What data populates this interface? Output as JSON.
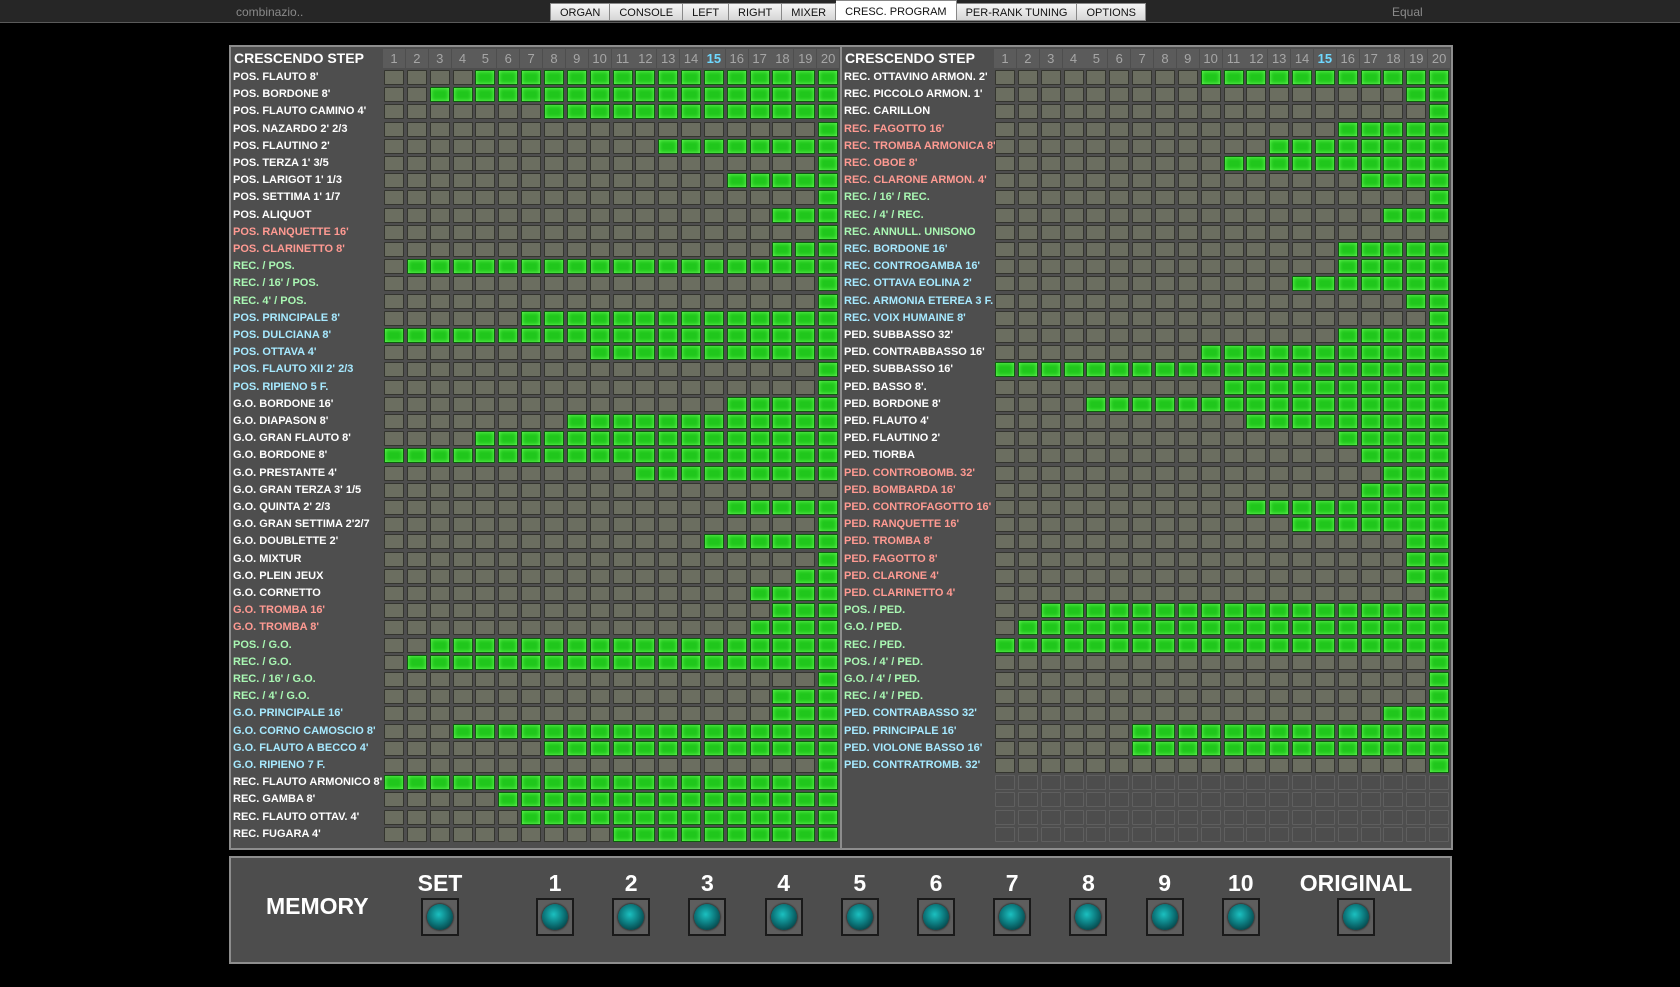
{
  "toolbar": {
    "combination": "combinazio..",
    "temperament": "Equal",
    "tabs": [
      "ORGAN",
      "CONSOLE",
      "LEFT",
      "RIGHT",
      "MIXER",
      "CRESC. PROGRAM",
      "PER-RANK TUNING",
      "OPTIONS"
    ],
    "active_tab": "CRESC. PROGRAM"
  },
  "crescendo": {
    "header_label": "CRESCENDO STEP",
    "steps": [
      "1",
      "2",
      "3",
      "4",
      "5",
      "6",
      "7",
      "8",
      "9",
      "10",
      "11",
      "12",
      "13",
      "14",
      "15",
      "16",
      "17",
      "18",
      "19",
      "20"
    ],
    "current_step": 15,
    "colors": {
      "active": "#20c71c",
      "inactive": "#6b6e60",
      "label_white": "#ffffff",
      "label_red": "#ff9a92",
      "label_green": "#a9f7b3",
      "label_blue": "#a6e9ff"
    },
    "left": [
      {
        "name": "POS. FLAUTO 8'",
        "color": "w",
        "from": 5
      },
      {
        "name": "POS. BORDONE 8'",
        "color": "w",
        "from": 3
      },
      {
        "name": "POS. FLAUTO CAMINO 4'",
        "color": "w",
        "from": 8
      },
      {
        "name": "POS. NAZARDO 2' 2/3",
        "color": "w",
        "from": 20
      },
      {
        "name": "POS. FLAUTINO 2'",
        "color": "w",
        "from": 13
      },
      {
        "name": "POS. TERZA 1' 3/5",
        "color": "w",
        "from": 20
      },
      {
        "name": "POS. LARIGOT 1' 1/3",
        "color": "w",
        "from": 16
      },
      {
        "name": "POS. SETTIMA 1' 1/7",
        "color": "w",
        "from": 20
      },
      {
        "name": "POS. ALIQUOT",
        "color": "w",
        "from": 18
      },
      {
        "name": "POS. RANQUETTE 16'",
        "color": "r",
        "from": 20
      },
      {
        "name": "POS. CLARINETTO 8'",
        "color": "r",
        "from": 18
      },
      {
        "name": "REC. / POS.",
        "color": "g",
        "from": 2
      },
      {
        "name": "REC. / 16' / POS.",
        "color": "g",
        "from": 20
      },
      {
        "name": "REC. 4' / POS.",
        "color": "g",
        "from": 20
      },
      {
        "name": "POS. PRINCIPALE 8'",
        "color": "b",
        "from": 7
      },
      {
        "name": "POS. DULCIANA 8'",
        "color": "b",
        "from": 1
      },
      {
        "name": "POS. OTTAVA 4'",
        "color": "b",
        "from": 10
      },
      {
        "name": "POS. FLAUTO XII 2' 2/3",
        "color": "b",
        "from": 20
      },
      {
        "name": "POS. RIPIENO 5 F.",
        "color": "b",
        "from": 20
      },
      {
        "name": "G.O. BORDONE 16'",
        "color": "w",
        "from": 16
      },
      {
        "name": "G.O. DIAPASON 8'",
        "color": "w",
        "from": 9
      },
      {
        "name": "G.O. GRAN FLAUTO 8'",
        "color": "w",
        "from": 5
      },
      {
        "name": "G.O. BORDONE 8'",
        "color": "w",
        "from": 1
      },
      {
        "name": "G.O. PRESTANTE 4'",
        "color": "w",
        "from": 12
      },
      {
        "name": "G.O. GRAN TERZA 3' 1/5",
        "color": "w",
        "from": 21
      },
      {
        "name": "G.O. QUINTA 2' 2/3",
        "color": "w",
        "from": 16
      },
      {
        "name": "G.O. GRAN SETTIMA 2'2/7",
        "color": "w",
        "from": 20
      },
      {
        "name": "G.O. DOUBLETTE 2'",
        "color": "w",
        "from": 15
      },
      {
        "name": "G.O. MIXTUR",
        "color": "w",
        "from": 20
      },
      {
        "name": "G.O. PLEIN JEUX",
        "color": "w",
        "from": 19
      },
      {
        "name": "G.O. CORNETTO",
        "color": "w",
        "from": 17
      },
      {
        "name": "G.O. TROMBA 16'",
        "color": "r",
        "from": 18
      },
      {
        "name": "G.O. TROMBA 8'",
        "color": "r",
        "from": 17
      },
      {
        "name": "POS. / G.O.",
        "color": "g",
        "from": 3
      },
      {
        "name": "REC. / G.O.",
        "color": "g",
        "from": 2
      },
      {
        "name": "REC. / 16' / G.O.",
        "color": "g",
        "from": 20
      },
      {
        "name": "REC. / 4' / G.O.",
        "color": "g",
        "from": 18
      },
      {
        "name": "G.O. PRINCIPALE 16'",
        "color": "b",
        "from": 18
      },
      {
        "name": "G.O. CORNO CAMOSCIO 8'",
        "color": "b",
        "from": 4
      },
      {
        "name": "G.O. FLAUTO A BECCO 4'",
        "color": "b",
        "from": 8
      },
      {
        "name": "G.O. RIPIENO 7 F.",
        "color": "b",
        "from": 20
      },
      {
        "name": "REC. FLAUTO ARMONICO 8'",
        "color": "w",
        "from": 1
      },
      {
        "name": "REC. GAMBA 8'",
        "color": "w",
        "from": 6
      },
      {
        "name": "REC. FLAUTO OTTAV. 4'",
        "color": "w",
        "from": 7
      },
      {
        "name": "REC. FUGARA 4'",
        "color": "w",
        "from": 11
      }
    ],
    "right": [
      {
        "name": "REC. OTTAVINO ARMON. 2'",
        "color": "w",
        "from": 10
      },
      {
        "name": "REC. PICCOLO ARMON. 1'",
        "color": "w",
        "from": 19
      },
      {
        "name": "REC. CARILLON",
        "color": "w",
        "from": 20
      },
      {
        "name": "REC. FAGOTTO 16'",
        "color": "r",
        "from": 16
      },
      {
        "name": "REC. TROMBA ARMONICA 8'",
        "color": "r",
        "from": 13
      },
      {
        "name": "REC. OBOE 8'",
        "color": "r",
        "from": 11
      },
      {
        "name": "REC. CLARONE ARMON. 4'",
        "color": "r",
        "from": 17
      },
      {
        "name": "REC. / 16' / REC.",
        "color": "g",
        "from": 20
      },
      {
        "name": "REC. / 4' / REC.",
        "color": "g",
        "from": 18
      },
      {
        "name": "REC. ANNULL. UNISONO",
        "color": "g",
        "from": 21
      },
      {
        "name": "REC. BORDONE 16'",
        "color": "b",
        "from": 16
      },
      {
        "name": "REC. CONTROGAMBA 16'",
        "color": "b",
        "from": 16
      },
      {
        "name": "REC. OTTAVA EOLINA 2'",
        "color": "b",
        "from": 14
      },
      {
        "name": "REC. ARMONIA ETEREA 3 F.",
        "color": "b",
        "from": 19
      },
      {
        "name": "REC. VOIX HUMAINE 8'",
        "color": "b",
        "from": 20
      },
      {
        "name": "PED. SUBBASSO 32'",
        "color": "w",
        "from": 16
      },
      {
        "name": "PED. CONTRABBASSO 16'",
        "color": "w",
        "from": 10
      },
      {
        "name": "PED. SUBBASSO 16'",
        "color": "w",
        "from": 1
      },
      {
        "name": "PED. BASSO 8'.",
        "color": "w",
        "from": 11
      },
      {
        "name": "PED. BORDONE 8'",
        "color": "w",
        "from": 5
      },
      {
        "name": "PED. FLAUTO 4'",
        "color": "w",
        "from": 12
      },
      {
        "name": "PED. FLAUTINO 2'",
        "color": "w",
        "from": 16
      },
      {
        "name": "PED. TIORBA",
        "color": "w",
        "from": 17
      },
      {
        "name": "PED. CONTROBOMB. 32'",
        "color": "r",
        "from": 18
      },
      {
        "name": "PED. BOMBARDA 16'",
        "color": "r",
        "from": 17
      },
      {
        "name": "PED. CONTROFAGOTTO 16'",
        "color": "r",
        "from": 12
      },
      {
        "name": "PED. RANQUETTE 16'",
        "color": "r",
        "from": 14
      },
      {
        "name": "PED. TROMBA 8'",
        "color": "r",
        "from": 19
      },
      {
        "name": "PED. FAGOTTO 8'",
        "color": "r",
        "from": 19
      },
      {
        "name": "PED. CLARONE 4'",
        "color": "r",
        "from": 19
      },
      {
        "name": "PED. CLARINETTO 4'",
        "color": "r",
        "from": 20
      },
      {
        "name": "POS. / PED.",
        "color": "g",
        "from": 3
      },
      {
        "name": "G.O. / PED.",
        "color": "g",
        "from": 2
      },
      {
        "name": "REC. / PED.",
        "color": "g",
        "from": 1
      },
      {
        "name": "POS. / 4' / PED.",
        "color": "g",
        "from": 20
      },
      {
        "name": "G.O. / 4' / PED.",
        "color": "g",
        "from": 20
      },
      {
        "name": "REC. / 4' / PED.",
        "color": "g",
        "from": 20
      },
      {
        "name": "PED. CONTRABASSO  32'",
        "color": "b",
        "from": 18
      },
      {
        "name": "PED. PRINCIPALE 16'",
        "color": "b",
        "from": 7
      },
      {
        "name": "PED. VIOLONE BASSO 16'",
        "color": "b",
        "from": 7
      },
      {
        "name": "PED. CONTRATROMB. 32'",
        "color": "b",
        "from": 20
      },
      {
        "name": "",
        "color": "w",
        "from": 0
      },
      {
        "name": "",
        "color": "w",
        "from": 0
      },
      {
        "name": "",
        "color": "w",
        "from": 0
      },
      {
        "name": "",
        "color": "w",
        "from": 0
      }
    ]
  },
  "memory": {
    "title": "MEMORY",
    "set_label": "SET",
    "slots": [
      "1",
      "2",
      "3",
      "4",
      "5",
      "6",
      "7",
      "8",
      "9",
      "10"
    ],
    "original_label": "ORIGINAL"
  }
}
